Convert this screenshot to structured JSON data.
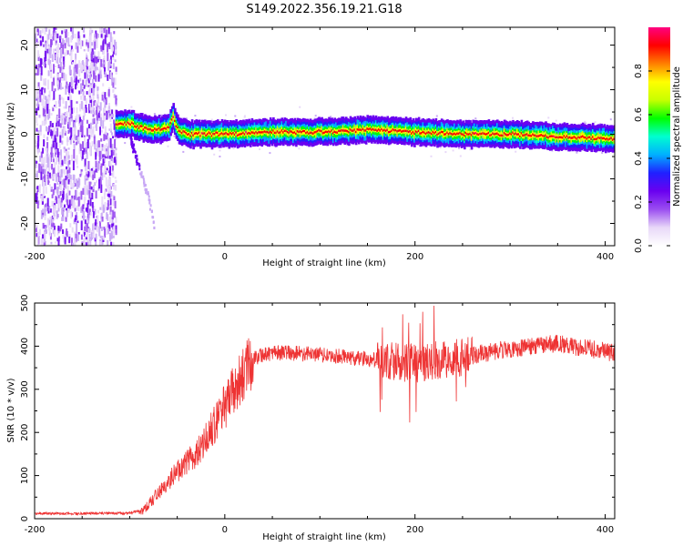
{
  "title": "S149.2022.356.19.21.G18",
  "chart_data": [
    {
      "type": "heatmap",
      "xlabel": "Height of straight line (km)",
      "ylabel": "Frequency (Hz)",
      "xlim": [
        -200,
        410
      ],
      "ylim": [
        -25,
        24
      ],
      "x_ticks": [
        -200,
        0,
        200,
        400
      ],
      "y_ticks": [
        -20,
        -10,
        0,
        10,
        20
      ],
      "colorbar": {
        "label": "Normalized spectral amplitude",
        "range": [
          0,
          1
        ],
        "ticks": [
          0,
          0.2,
          0.4,
          0.6,
          0.8
        ],
        "colormap": [
          "#ffffff",
          "#e8d8f8",
          "#9a4df0",
          "#6a00f0",
          "#2020ff",
          "#00b0ff",
          "#00ffd0",
          "#00ff00",
          "#c8ff00",
          "#ffff00",
          "#ff8000",
          "#ff0000",
          "#ff0080"
        ]
      },
      "noise_region_x": [
        -200,
        -115
      ],
      "ridge": {
        "x": [
          -115,
          -100,
          -90,
          -80,
          -70,
          -60,
          -55,
          -50,
          -40,
          -20,
          0,
          50,
          100,
          150,
          200,
          250,
          300,
          350,
          410
        ],
        "frequency": [
          2,
          2.5,
          1.5,
          1,
          1,
          1.5,
          4,
          1,
          0,
          0,
          0,
          0.5,
          0.5,
          1,
          0.5,
          0,
          0,
          -0.5,
          -1
        ]
      },
      "tail": {
        "x": [
          -100,
          -90,
          -80,
          -75
        ],
        "frequency": [
          -1,
          -8,
          -15,
          -21
        ]
      }
    },
    {
      "type": "line",
      "xlabel": "Height of straight line (km)",
      "ylabel": "SNR (10 * v/v)",
      "xlim": [
        -200,
        410
      ],
      "ylim": [
        0,
        500
      ],
      "x_ticks": [
        -200,
        0,
        200,
        400
      ],
      "y_ticks": [
        0,
        100,
        200,
        300,
        400,
        500
      ],
      "line_color": "#ee3333",
      "envelope": {
        "x": [
          -200,
          -150,
          -100,
          -85,
          -70,
          -50,
          -30,
          -10,
          0,
          10,
          20,
          30,
          40,
          60,
          100,
          150,
          200,
          250,
          300,
          350,
          410
        ],
        "snr": [
          12,
          12,
          13,
          20,
          60,
          110,
          150,
          220,
          260,
          300,
          340,
          370,
          380,
          385,
          380,
          370,
          360,
          375,
          395,
          405,
          385
        ]
      }
    }
  ]
}
